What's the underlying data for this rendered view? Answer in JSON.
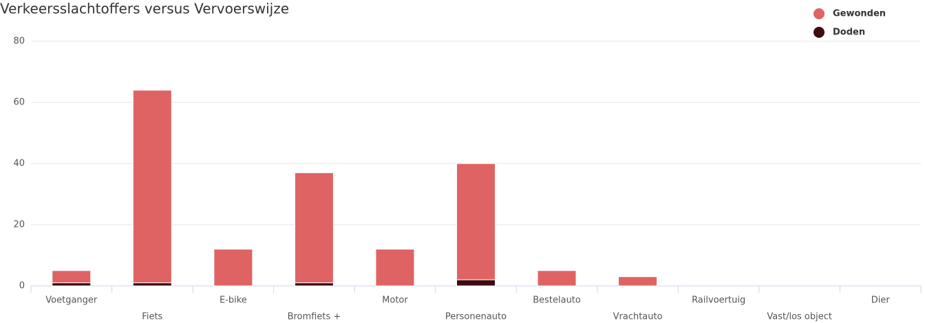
{
  "chart_data": {
    "type": "stacked-bar",
    "title": "Verkeersslachtoffers versus Vervoerswijze",
    "categories": [
      "Voetganger",
      "Fiets",
      "E-bike",
      "Bromfiets +",
      "Motor",
      "Personenauto",
      "Bestelauto",
      "Vrachtauto",
      "Railvoertuig",
      "Vast/los object",
      "Dier"
    ],
    "series": [
      {
        "name": "Gewonden",
        "color": "#e06363",
        "values": [
          4,
          63,
          12,
          36,
          12,
          38,
          5,
          3,
          0,
          0,
          0
        ]
      },
      {
        "name": "Doden",
        "color": "#3d0c11",
        "values": [
          1,
          1,
          0,
          1,
          0,
          2,
          0,
          0,
          0,
          0,
          0
        ]
      }
    ],
    "stack_order": [
      1,
      0
    ],
    "ylim": [
      0,
      80
    ],
    "yticks": [
      0,
      20,
      40,
      60,
      80
    ],
    "grid": true,
    "legend": "top-right"
  }
}
